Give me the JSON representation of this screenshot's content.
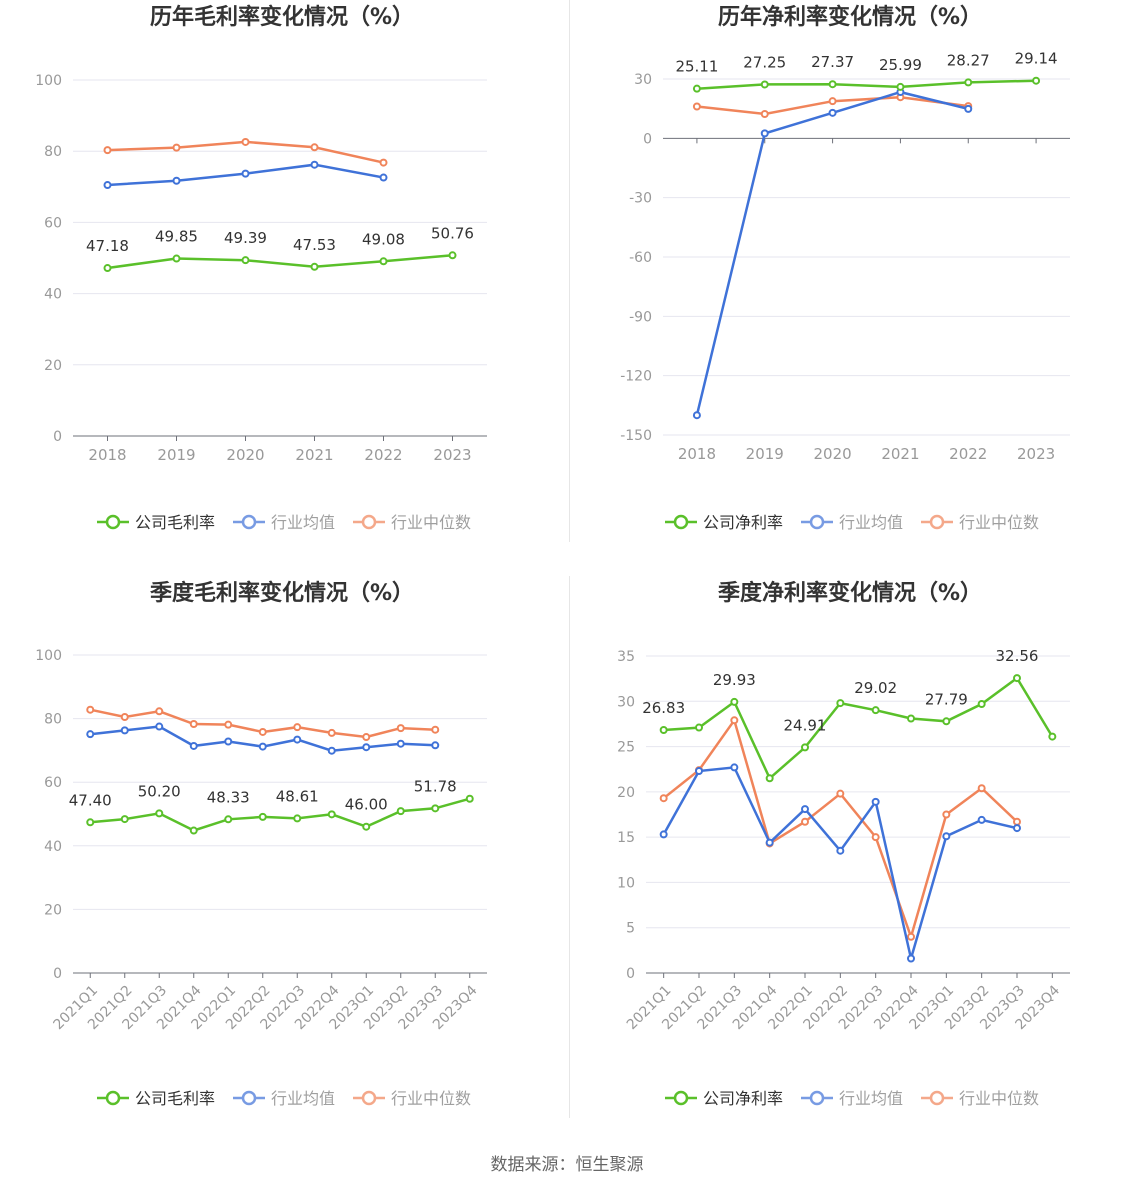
{
  "legend_labels": {
    "industry_avg": "行业均值",
    "industry_median": "行业中位数"
  },
  "colors": {
    "company": "#5ac02a",
    "industry_avg": "#3f72d8",
    "industry_median": "#f0845a"
  },
  "source": "数据来源：恒生聚源",
  "chart_data": [
    {
      "type": "line",
      "title": "历年毛利率变化情况（%）",
      "categories": [
        "2018",
        "2019",
        "2020",
        "2021",
        "2022",
        "2023"
      ],
      "ylim": [
        0,
        100
      ],
      "yticks": [
        0,
        20,
        40,
        60,
        80,
        100
      ],
      "series": [
        {
          "name": "公司毛利率",
          "key": "company",
          "values": [
            47.18,
            49.85,
            49.39,
            47.53,
            49.08,
            50.76
          ],
          "labels": [
            "47.18",
            "49.85",
            "49.39",
            "47.53",
            "49.08",
            "50.76"
          ]
        },
        {
          "name": "行业均值",
          "key": "industry_avg",
          "values": [
            70.5,
            71.7,
            73.7,
            76.2,
            72.6,
            null
          ]
        },
        {
          "name": "行业中位数",
          "key": "industry_median",
          "values": [
            80.3,
            81.0,
            82.6,
            81.1,
            76.8,
            null
          ]
        }
      ]
    },
    {
      "type": "line",
      "title": "历年净利率变化情况（%）",
      "categories": [
        "2018",
        "2019",
        "2020",
        "2021",
        "2022",
        "2023"
      ],
      "ylim": [
        -150,
        30
      ],
      "yticks": [
        -150,
        -120,
        -90,
        -60,
        -30,
        0,
        30
      ],
      "series": [
        {
          "name": "公司净利率",
          "key": "company",
          "values": [
            25.11,
            27.25,
            27.37,
            25.99,
            28.27,
            29.14
          ],
          "labels": [
            "25.11",
            "27.25",
            "27.37",
            "25.99",
            "28.27",
            "29.14"
          ]
        },
        {
          "name": "行业均值",
          "key": "industry_avg",
          "values": [
            -140.0,
            2.5,
            12.9,
            23.4,
            14.9,
            null
          ]
        },
        {
          "name": "行业中位数",
          "key": "industry_median",
          "values": [
            16.1,
            12.3,
            18.8,
            20.8,
            16.3,
            null
          ]
        }
      ]
    },
    {
      "type": "line",
      "title": "季度毛利率变化情况（%）",
      "categories": [
        "2021Q1",
        "2021Q2",
        "2021Q3",
        "2021Q4",
        "2022Q1",
        "2022Q2",
        "2022Q3",
        "2022Q4",
        "2023Q1",
        "2023Q2",
        "2023Q3",
        "2023Q4"
      ],
      "ylim": [
        0,
        100
      ],
      "yticks": [
        0,
        20,
        40,
        60,
        80,
        100
      ],
      "series": [
        {
          "name": "公司毛利率",
          "key": "company",
          "values": [
            47.4,
            48.4,
            50.2,
            44.8,
            48.33,
            49.1,
            48.61,
            49.9,
            46.0,
            50.9,
            51.78,
            54.8
          ],
          "labels": [
            "47.40",
            "",
            "50.20",
            "",
            "48.33",
            "",
            "48.61",
            "",
            "46.00",
            "",
            "51.78",
            ""
          ]
        },
        {
          "name": "行业均值",
          "key": "industry_avg",
          "values": [
            75.1,
            76.3,
            77.5,
            71.4,
            72.8,
            71.2,
            73.4,
            69.9,
            71.0,
            72.1,
            71.6,
            null
          ]
        },
        {
          "name": "行业中位数",
          "key": "industry_median",
          "values": [
            82.8,
            80.5,
            82.3,
            78.3,
            78.1,
            75.8,
            77.3,
            75.5,
            74.2,
            77.0,
            76.5,
            null
          ]
        }
      ]
    },
    {
      "type": "line",
      "title": "季度净利率变化情况（%）",
      "categories": [
        "2021Q1",
        "2021Q2",
        "2021Q3",
        "2021Q4",
        "2022Q1",
        "2022Q2",
        "2022Q3",
        "2022Q4",
        "2023Q1",
        "2023Q2",
        "2023Q3",
        "2023Q4"
      ],
      "ylim": [
        0,
        35
      ],
      "yticks": [
        0,
        5,
        10,
        15,
        20,
        25,
        30,
        35
      ],
      "series": [
        {
          "name": "公司净利率",
          "key": "company",
          "values": [
            26.83,
            27.1,
            29.93,
            21.5,
            24.91,
            29.8,
            29.02,
            28.1,
            27.79,
            29.7,
            32.56,
            26.1
          ],
          "labels": [
            "26.83",
            "",
            "29.93",
            "",
            "24.91",
            "",
            "29.02",
            "",
            "27.79",
            "",
            "32.56",
            ""
          ]
        },
        {
          "name": "行业均值",
          "key": "industry_avg",
          "values": [
            15.3,
            22.3,
            22.7,
            14.4,
            18.1,
            13.5,
            18.9,
            1.6,
            15.1,
            16.9,
            16.0,
            null
          ]
        },
        {
          "name": "行业中位数",
          "key": "industry_median",
          "values": [
            19.3,
            22.4,
            27.9,
            14.3,
            16.7,
            19.8,
            15.0,
            4.0,
            17.5,
            20.4,
            16.7,
            null
          ]
        }
      ]
    }
  ]
}
